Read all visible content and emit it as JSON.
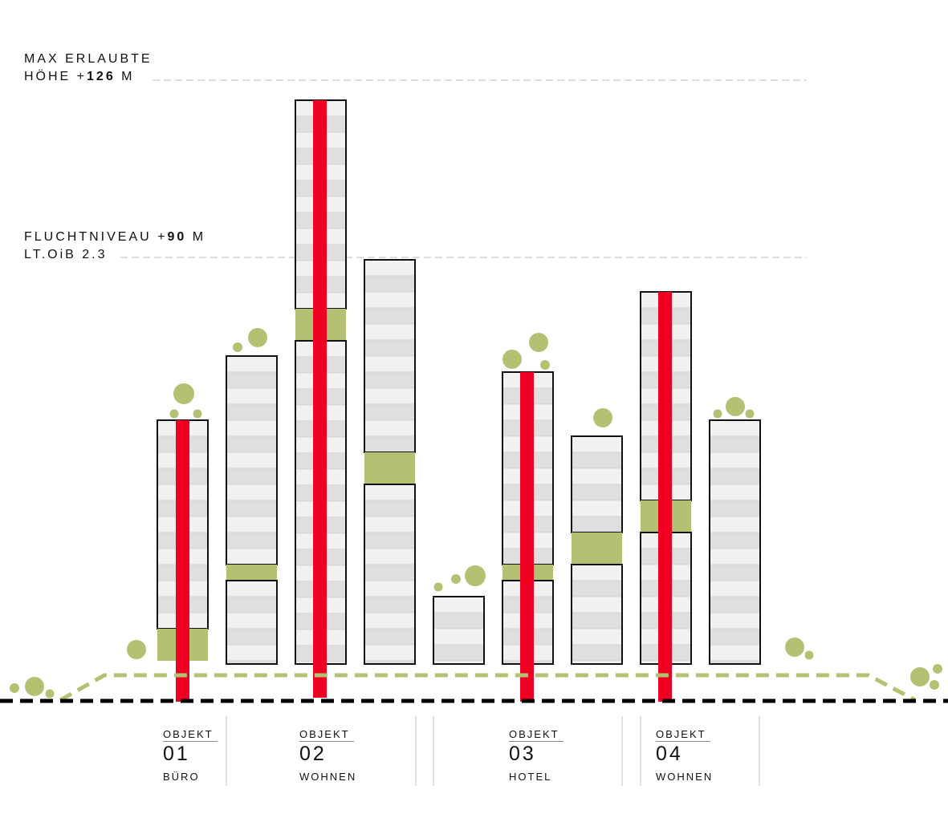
{
  "colors": {
    "green": "#b2c172",
    "red": "#ee0022",
    "floor_light": "#f1f1f1",
    "floor_dark": "#dfdfdf",
    "outline": "#111111",
    "guide": "#bbbbbb"
  },
  "levels": {
    "max": {
      "line1": "MAX ERLAUBTE",
      "line2_pre": "HÖHE +",
      "line2_num": "126",
      "line2_post": " M"
    },
    "escape": {
      "line1_pre": "FLUCHTNIVEAU +",
      "line1_num": "90",
      "line1_post": " M",
      "line2": "LT.OiB 2.3"
    }
  },
  "objects": [
    {
      "kicker": "OBJEKT",
      "number": "01",
      "use": "BÜRO"
    },
    {
      "kicker": "OBJEKT",
      "number": "02",
      "use": "WOHNEN"
    },
    {
      "kicker": "OBJEKT",
      "number": "03",
      "use": "HOTEL"
    },
    {
      "kicker": "OBJEKT",
      "number": "04",
      "use": "WOHNEN"
    }
  ],
  "icons": {
    "tree": "tree-circle-icon",
    "core": "vertical-core-icon"
  }
}
